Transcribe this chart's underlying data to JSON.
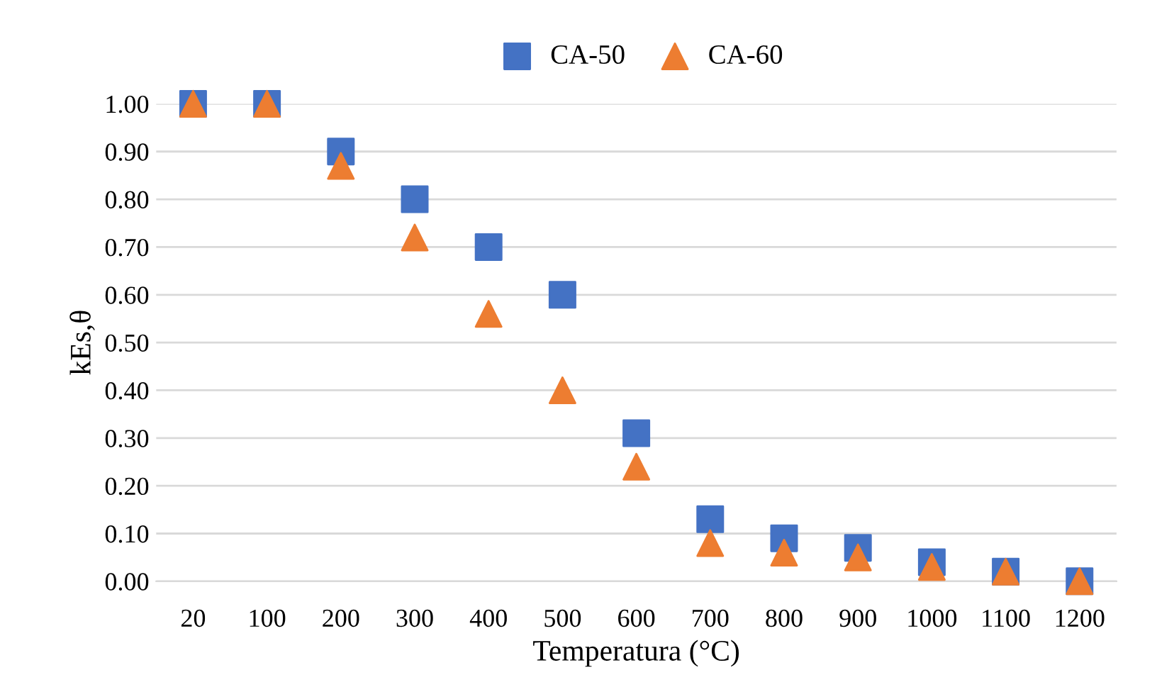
{
  "chart_data": {
    "type": "scatter",
    "xlabel": "Temperatura (°C)",
    "ylabel": "kEs,θ",
    "categories": [
      "20",
      "100",
      "200",
      "300",
      "400",
      "500",
      "600",
      "700",
      "800",
      "900",
      "1000",
      "1100",
      "1200"
    ],
    "series": [
      {
        "name": "CA-50",
        "color": "#4472c4",
        "marker": "square",
        "values": [
          1.0,
          1.0,
          0.9,
          0.8,
          0.7,
          0.6,
          0.31,
          0.13,
          0.09,
          0.07,
          0.04,
          0.02,
          0.0
        ]
      },
      {
        "name": "CA-60",
        "color": "#ed7d31",
        "marker": "triangle",
        "values": [
          1.0,
          1.0,
          0.87,
          0.72,
          0.56,
          0.4,
          0.24,
          0.08,
          0.06,
          0.05,
          0.03,
          0.02,
          0.0
        ]
      }
    ],
    "ylim": [
      0,
      1
    ],
    "yticks": [
      {
        "value": 0,
        "label": "0.00"
      },
      {
        "value": 0.1,
        "label": "0.10"
      },
      {
        "value": 0.2,
        "label": "0.20"
      },
      {
        "value": 0.3,
        "label": "0.30"
      },
      {
        "value": 0.4,
        "label": "0.40"
      },
      {
        "value": 0.5,
        "label": "0.50"
      },
      {
        "value": 0.6,
        "label": "0.60"
      },
      {
        "value": 0.7,
        "label": "0.70"
      },
      {
        "value": 0.8,
        "label": "0.80"
      },
      {
        "value": 0.9,
        "label": "0.90"
      },
      {
        "value": 1,
        "label": "1.00"
      }
    ],
    "grid": "y",
    "legend": "top"
  }
}
